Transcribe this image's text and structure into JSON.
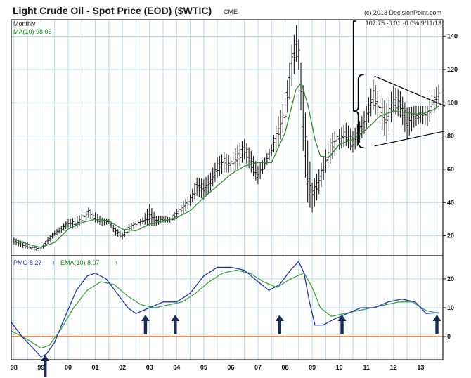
{
  "header": {
    "title": "Light Crude Oil - Spot Price (EOD) ($WTIC)",
    "exchange": "CME",
    "copyright": "(c) 2013 DecisionPoint.com",
    "last_quote": "107.75  -0.01  -0.0%  9/11/13",
    "interval": "Monthly",
    "ma_label": "MA(10) 98.06"
  },
  "lower_panel": {
    "pmo_label": "PMO  8.27",
    "pmo_arrow": "↑",
    "ema_label": "EMA(10)  8.07",
    "ema_arrow": "↑"
  },
  "colors": {
    "background": "#ffffff",
    "frame": "#1a1a1a",
    "grid": "#b8d8ea",
    "price_bars": "#1a1a1a",
    "moving_average": "#2e8b2e",
    "pmo": "#2233bb",
    "ema": "#3aa63a",
    "zero_line": "#e07030",
    "arrows": "#1b2a55",
    "annotations": "#000000"
  },
  "chart_data": [
    {
      "type": "line",
      "title": "Light Crude Oil - Spot Price (EOD) ($WTIC)",
      "xlabel": "",
      "ylabel": "",
      "x_ticks": [
        "98",
        "99",
        "00",
        "01",
        "02",
        "03",
        "04",
        "05",
        "06",
        "07",
        "08",
        "09",
        "10",
        "11",
        "12",
        "13"
      ],
      "y_ticks": [
        20,
        40,
        60,
        80,
        100,
        120,
        140
      ],
      "xlim": [
        1997.9,
        2013.82
      ],
      "ylim": [
        8,
        150
      ],
      "grid": true,
      "series": [
        {
          "name": "Monthly",
          "kind": "ohlc_range",
          "x": [
            1998.0,
            1998.25,
            1998.5,
            1998.75,
            1999.0,
            1999.25,
            1999.5,
            1999.75,
            2000.0,
            2000.25,
            2000.5,
            2000.75,
            2001.0,
            2001.25,
            2001.5,
            2001.75,
            2002.0,
            2002.25,
            2002.5,
            2002.75,
            2003.0,
            2003.25,
            2003.5,
            2003.75,
            2004.0,
            2004.25,
            2004.5,
            2004.75,
            2005.0,
            2005.25,
            2005.5,
            2005.75,
            2006.0,
            2006.25,
            2006.5,
            2006.75,
            2007.0,
            2007.25,
            2007.5,
            2007.75,
            2008.0,
            2008.25,
            2008.42,
            2008.5,
            2008.67,
            2008.83,
            2009.0,
            2009.25,
            2009.5,
            2009.75,
            2010.0,
            2010.25,
            2010.5,
            2010.75,
            2011.0,
            2011.25,
            2011.5,
            2011.75,
            2012.0,
            2012.25,
            2012.5,
            2012.75,
            2013.0,
            2013.25,
            2013.5,
            2013.67
          ],
          "low": [
            15,
            13,
            12,
            11,
            11,
            15,
            20,
            22,
            25,
            24,
            27,
            31,
            28,
            26,
            27,
            20,
            18,
            22,
            25,
            27,
            26,
            26,
            28,
            28,
            30,
            33,
            38,
            44,
            42,
            47,
            55,
            58,
            58,
            60,
            66,
            58,
            51,
            60,
            68,
            74,
            86,
            110,
            125,
            120,
            70,
            40,
            34,
            45,
            58,
            66,
            72,
            74,
            70,
            76,
            84,
            96,
            87,
            77,
            94,
            91,
            78,
            85,
            88,
            86,
            94,
            100
          ],
          "high": [
            19,
            17,
            16,
            14,
            13,
            19,
            23,
            26,
            30,
            31,
            33,
            37,
            34,
            31,
            30,
            25,
            22,
            27,
            29,
            31,
            39,
            32,
            32,
            31,
            36,
            41,
            45,
            55,
            54,
            58,
            67,
            70,
            68,
            75,
            78,
            71,
            62,
            67,
            75,
            92,
            103,
            135,
            147,
            138,
            110,
            78,
            52,
            60,
            72,
            82,
            84,
            88,
            83,
            89,
            98,
            114,
            104,
            100,
            110,
            107,
            97,
            98,
            98,
            98,
            108,
            111
          ]
        },
        {
          "name": "MA(10) 98.06",
          "x": [
            1998.0,
            1998.5,
            1999.0,
            1999.5,
            2000.0,
            2000.5,
            2001.0,
            2001.5,
            2002.0,
            2002.5,
            2003.0,
            2003.5,
            2004.0,
            2004.5,
            2005.0,
            2005.5,
            2006.0,
            2006.5,
            2007.0,
            2007.5,
            2008.0,
            2008.4,
            2008.6,
            2008.85,
            2009.1,
            2009.3,
            2009.6,
            2010.0,
            2010.5,
            2011.0,
            2011.5,
            2012.0,
            2012.5,
            2013.0,
            2013.5,
            2013.67
          ],
          "values": [
            18,
            15,
            13,
            16,
            24,
            28,
            30,
            29,
            24,
            23,
            27,
            29,
            31,
            35,
            43,
            50,
            57,
            62,
            64,
            64,
            82,
            108,
            112,
            98,
            78,
            68,
            67,
            75,
            78,
            84,
            92,
            95,
            94,
            93,
            96,
            98
          ]
        }
      ],
      "annotations": [
        {
          "kind": "brace",
          "x": 2010.7,
          "y_from": 73,
          "y_to": 117
        },
        {
          "kind": "trendline",
          "x1": 2011.3,
          "y1": 116,
          "x2": 2013.9,
          "y2": 98
        },
        {
          "kind": "trendline",
          "x1": 2011.3,
          "y1": 74,
          "x2": 2013.9,
          "y2": 83
        }
      ]
    },
    {
      "type": "line",
      "title": "PMO  8.27",
      "x_ticks": [
        "98",
        "99",
        "00",
        "01",
        "02",
        "03",
        "04",
        "05",
        "06",
        "07",
        "08",
        "09",
        "10",
        "11",
        "12",
        "13"
      ],
      "y_ticks": [
        0,
        10,
        20
      ],
      "xlim": [
        1997.9,
        2013.82
      ],
      "ylim": [
        -8,
        28
      ],
      "grid": true,
      "series": [
        {
          "name": "PMO  8.27",
          "x": [
            1997.9,
            1998.3,
            1998.7,
            1999.0,
            1999.2,
            1999.5,
            1999.8,
            2000.3,
            2000.7,
            2001.0,
            2001.4,
            2001.8,
            2002.2,
            2002.5,
            2003.0,
            2003.5,
            2004.0,
            2004.5,
            2005.0,
            2005.5,
            2006.0,
            2006.5,
            2007.0,
            2007.4,
            2007.8,
            2008.2,
            2008.5,
            2008.7,
            2008.9,
            2009.1,
            2009.4,
            2009.8,
            2010.3,
            2010.8,
            2011.3,
            2011.8,
            2012.3,
            2012.8,
            2013.2,
            2013.67
          ],
          "values": [
            5,
            0,
            -4,
            -7,
            -6,
            -2,
            5,
            16,
            21,
            22,
            20,
            15,
            10,
            8,
            10,
            12,
            12,
            15,
            21,
            24,
            24,
            23,
            19,
            16,
            18,
            23,
            26,
            22,
            12,
            4,
            4,
            6,
            8,
            10,
            10,
            12,
            13,
            12,
            8,
            8.27
          ]
        },
        {
          "name": "EMA(10)  8.07",
          "x": [
            1997.9,
            1998.5,
            1999.0,
            1999.3,
            1999.7,
            2000.2,
            2000.7,
            2001.2,
            2001.7,
            2002.2,
            2002.7,
            2003.2,
            2003.7,
            2004.2,
            2004.7,
            2005.2,
            2005.7,
            2006.2,
            2006.7,
            2007.2,
            2007.7,
            2008.2,
            2008.7,
            2009.0,
            2009.3,
            2009.7,
            2010.2,
            2010.7,
            2011.2,
            2011.7,
            2012.2,
            2012.7,
            2013.2,
            2013.67
          ],
          "values": [
            2,
            -1,
            -4,
            -3,
            2,
            10,
            16,
            19,
            18,
            14,
            11,
            10,
            11,
            12,
            15,
            19,
            22,
            23,
            22,
            19,
            17,
            20,
            22,
            17,
            10,
            7,
            8,
            9,
            10,
            11,
            12,
            12,
            9,
            8.07
          ]
        }
      ],
      "annotations": [
        {
          "kind": "zero_line",
          "y": 0
        },
        {
          "kind": "up_arrow",
          "x": 1999.15
        },
        {
          "kind": "up_arrow",
          "x": 2002.85
        },
        {
          "kind": "up_arrow",
          "x": 2003.95
        },
        {
          "kind": "up_arrow",
          "x": 2007.8
        },
        {
          "kind": "up_arrow",
          "x": 2010.1
        },
        {
          "kind": "up_arrow",
          "x": 2013.6
        }
      ]
    }
  ]
}
